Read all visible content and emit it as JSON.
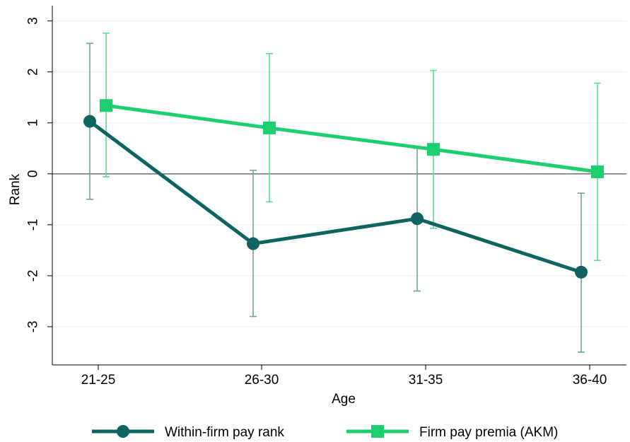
{
  "chart_data": {
    "type": "line",
    "xlabel": "Age",
    "ylabel": "Rank",
    "categories": [
      "21-25",
      "26-30",
      "31-35",
      "36-40"
    ],
    "ylim": [
      -3.75,
      3.3
    ],
    "yticks": [
      -3,
      -2,
      -1,
      0,
      1,
      2,
      3
    ],
    "reference_line": 0,
    "grid": true,
    "legend_position": "bottom",
    "series": [
      {
        "name": "Within-firm pay rank",
        "marker": "circle",
        "color": "#0f6360",
        "errbar_color": "#6fa3a1",
        "values": [
          1.03,
          -1.37,
          -0.88,
          -1.93
        ],
        "ci_low": [
          -0.5,
          -2.8,
          -2.3,
          -3.5
        ],
        "ci_high": [
          2.56,
          0.07,
          0.5,
          -0.38
        ]
      },
      {
        "name": "Firm pay premia (AKM)",
        "marker": "square",
        "color": "#1ecf6f",
        "errbar_color": "#5fdc95",
        "values": [
          1.34,
          0.9,
          0.48,
          0.04
        ],
        "ci_low": [
          -0.06,
          -0.55,
          -1.07,
          -1.7
        ],
        "ci_high": [
          2.76,
          2.36,
          2.03,
          1.78
        ]
      }
    ]
  }
}
